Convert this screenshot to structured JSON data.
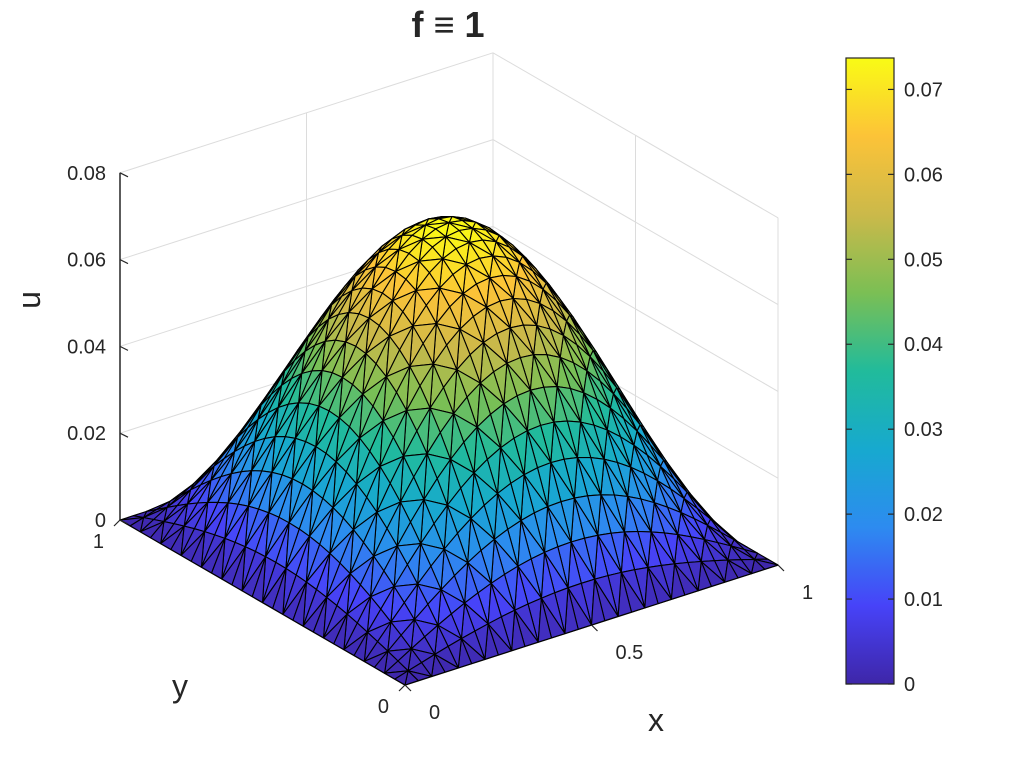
{
  "chart_data": {
    "type": "surface",
    "title": "f ≡ 1",
    "xlabel": "x",
    "ylabel": "y",
    "zlabel": "u",
    "xlim": [
      0,
      1
    ],
    "ylim": [
      0,
      1
    ],
    "zlim": [
      0,
      0.08
    ],
    "x_ticks": [
      "0",
      "0.5",
      "1"
    ],
    "y_ticks": [
      "0",
      "1"
    ],
    "z_ticks": [
      "0",
      "0.02",
      "0.04",
      "0.06",
      "0.08"
    ],
    "surface_peak": 0.0737,
    "grid": true,
    "mesh": "triangular",
    "colormap": "parula",
    "colorbar": {
      "location": "right",
      "range": [
        0,
        0.0737
      ],
      "ticks": [
        "0",
        "0.01",
        "0.02",
        "0.03",
        "0.04",
        "0.05",
        "0.06",
        "0.07"
      ],
      "colors": [
        "#3e26a8",
        "#4743f8",
        "#2d8bf0",
        "#17a9cf",
        "#21bb9b",
        "#7bbf54",
        "#cbb94a",
        "#fcc338",
        "#f9fb15"
      ]
    }
  }
}
